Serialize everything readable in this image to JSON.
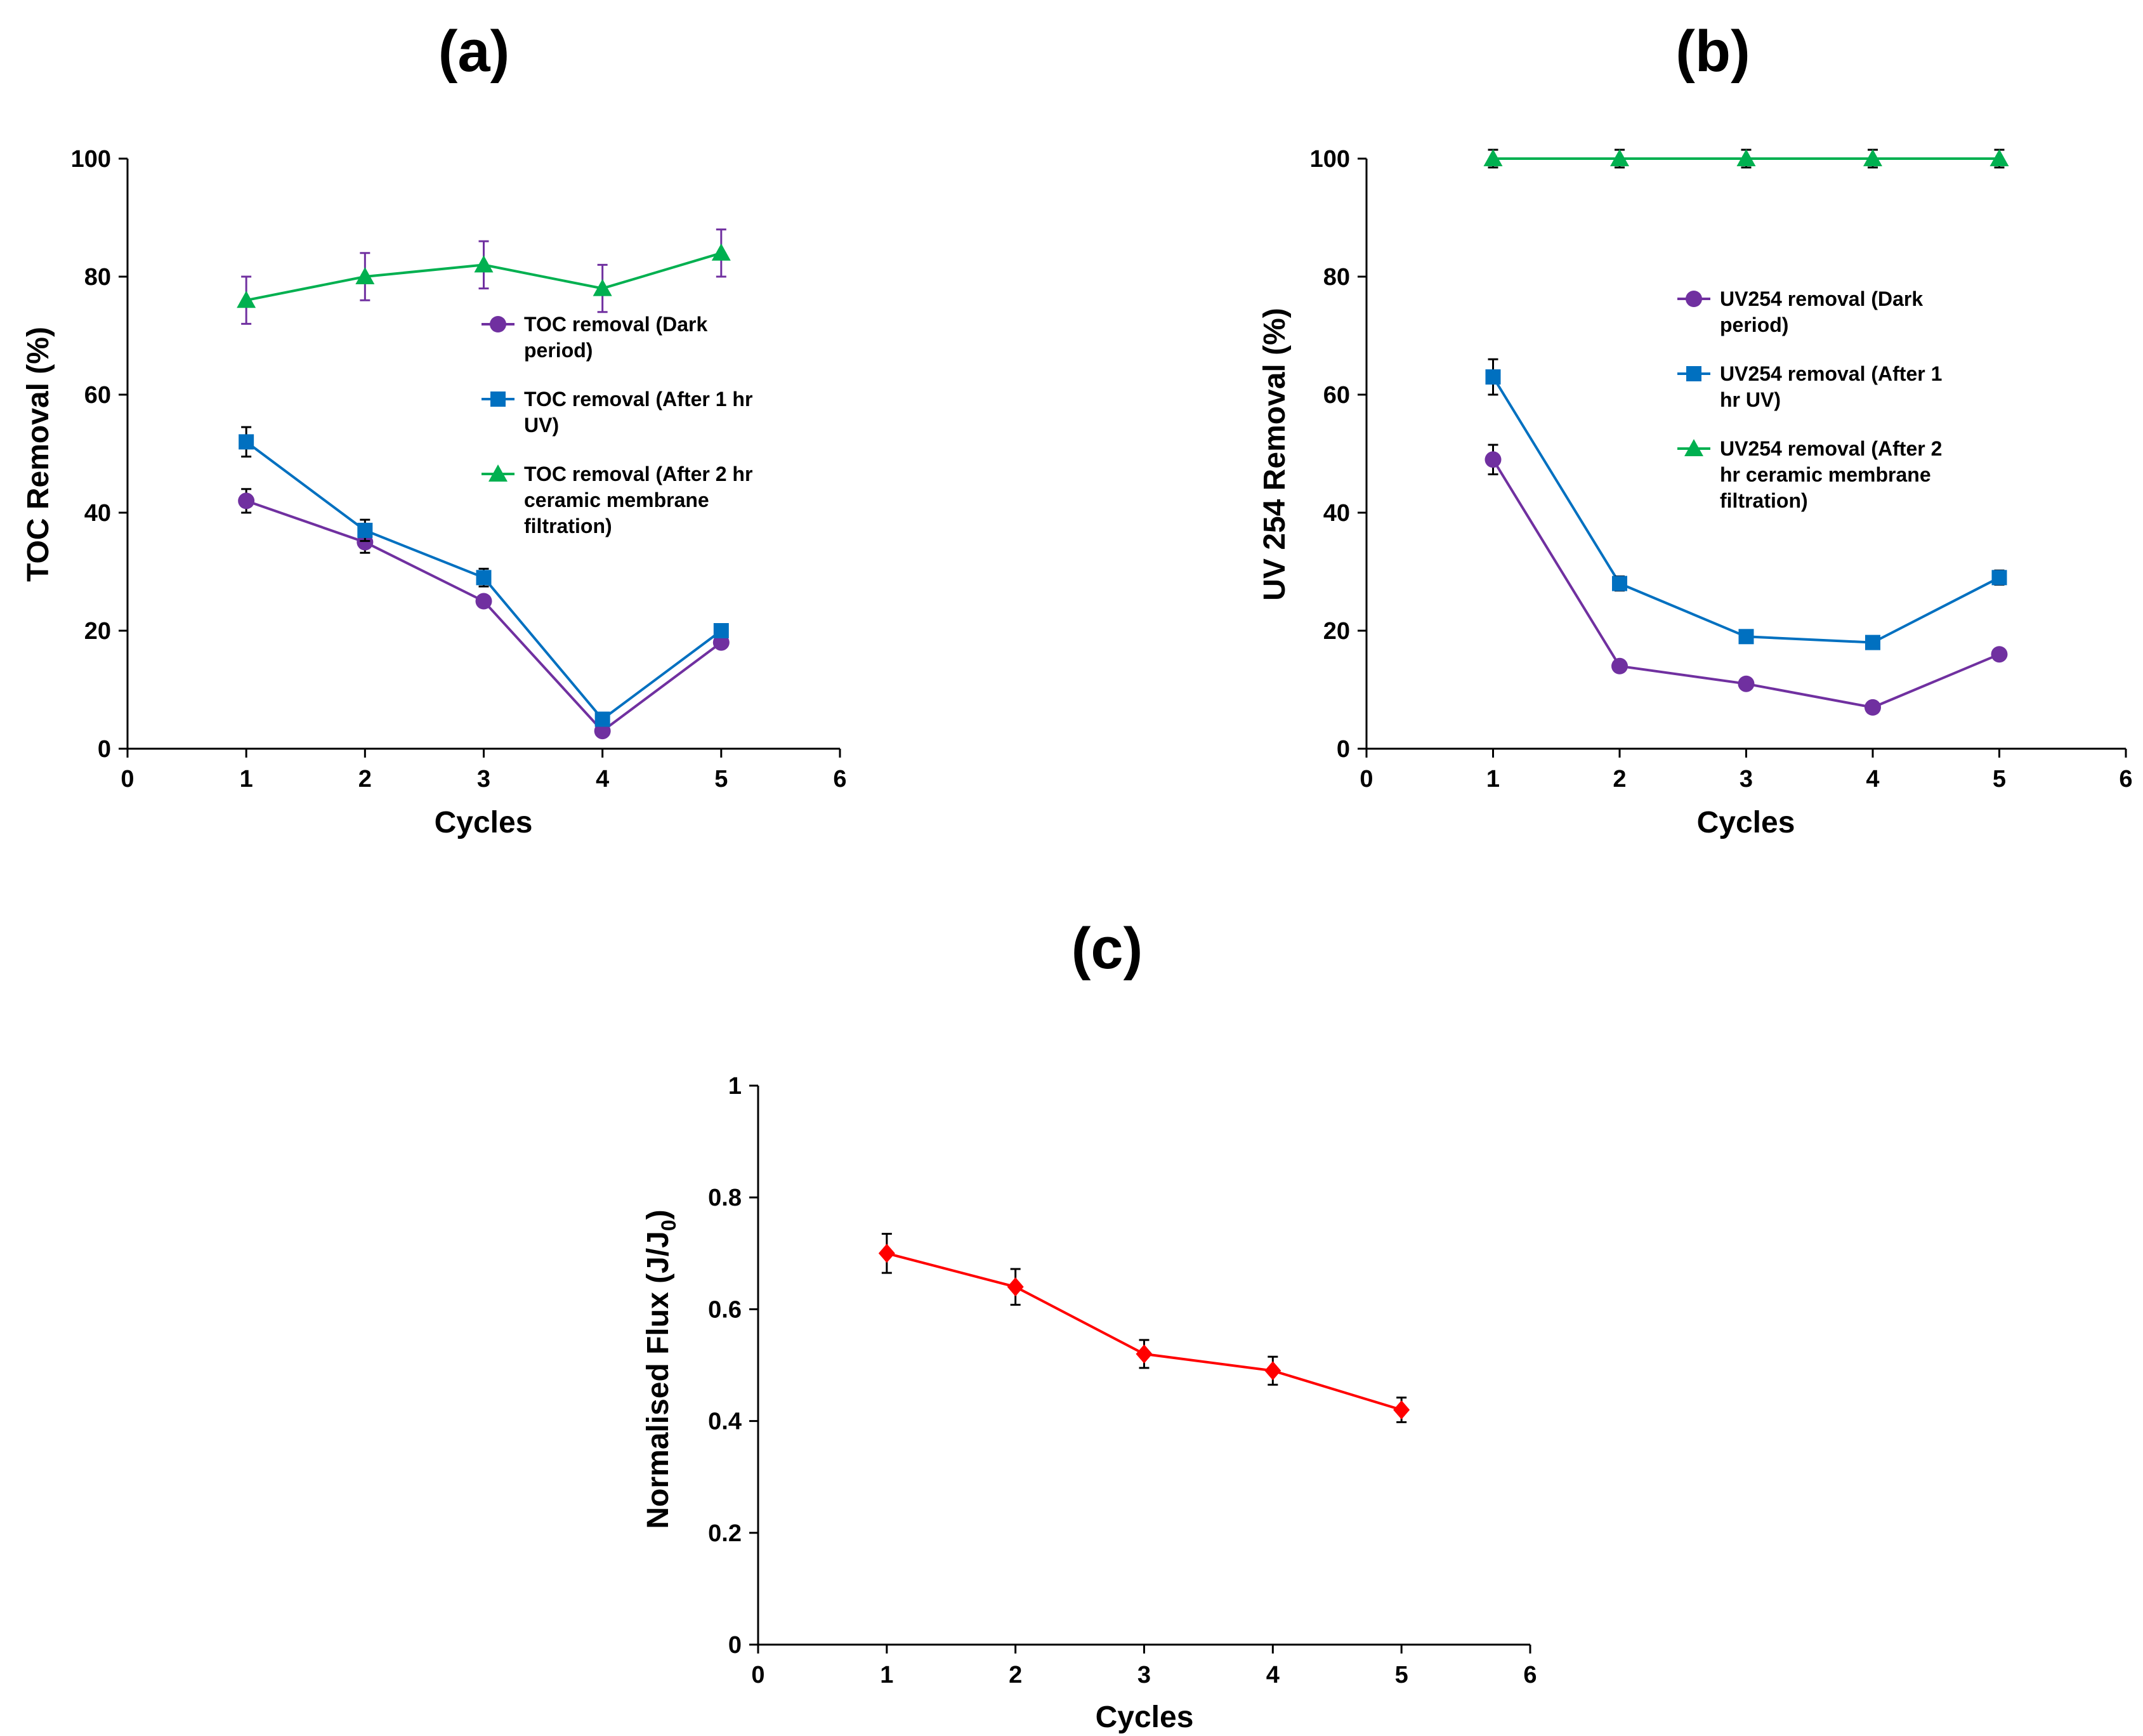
{
  "chart_data": [
    {
      "id": "a",
      "panel_label": "(a)",
      "type": "line",
      "xlabel": "Cycles",
      "ylabel": "TOC Removal (%)",
      "xlim": [
        0,
        6
      ],
      "ylim": [
        0,
        100
      ],
      "xticks": [
        "0",
        "1",
        "2",
        "3",
        "4",
        "5",
        "6"
      ],
      "yticks": [
        "0",
        "20",
        "40",
        "60",
        "80",
        "100"
      ],
      "x": [
        1,
        2,
        3,
        4,
        5
      ],
      "legend_position": "right-center",
      "series": [
        {
          "name": "TOC removal (Dark period)",
          "legend_lines": [
            "TOC removal (Dark",
            "period)"
          ],
          "marker": "circle",
          "color": "#7030A0",
          "values": [
            42,
            35,
            25,
            3,
            18
          ],
          "errors": [
            2,
            1.8,
            0,
            0,
            0
          ]
        },
        {
          "name": "TOC removal (After 1 hr UV)",
          "legend_lines": [
            "TOC removal (After 1 hr",
            "UV)"
          ],
          "marker": "square",
          "color": "#0070C0",
          "values": [
            52,
            37,
            29,
            5,
            20
          ],
          "errors": [
            2.5,
            1.8,
            1.5,
            0,
            0
          ]
        },
        {
          "name": "TOC removal (After 2 hr ceramic membrane filtration)",
          "legend_lines": [
            "TOC removal (After 2 hr",
            "ceramic membrane",
            "filtration)"
          ],
          "marker": "triangle",
          "color": "#00B050",
          "error_color": "#7030A0",
          "values": [
            76,
            80,
            82,
            78,
            84
          ],
          "errors": [
            4,
            4,
            4,
            4,
            4
          ]
        }
      ]
    },
    {
      "id": "b",
      "panel_label": "(b)",
      "type": "line",
      "xlabel": "Cycles",
      "ylabel": "UV 254 Removal (%)",
      "xlim": [
        0,
        6
      ],
      "ylim": [
        0,
        100
      ],
      "xticks": [
        "0",
        "1",
        "2",
        "3",
        "4",
        "5",
        "6"
      ],
      "yticks": [
        "0",
        "20",
        "40",
        "60",
        "80",
        "100"
      ],
      "x": [
        1,
        2,
        3,
        4,
        5
      ],
      "legend_position": "right-center",
      "series": [
        {
          "name": "UV254 removal (Dark period)",
          "legend_lines": [
            "UV254 removal (Dark",
            "period)"
          ],
          "marker": "circle",
          "color": "#7030A0",
          "values": [
            49,
            14,
            11,
            7,
            16
          ],
          "errors": [
            2.5,
            0,
            0,
            0,
            0
          ]
        },
        {
          "name": "UV254 removal (After 1 hr UV)",
          "legend_lines": [
            "UV254 removal (After 1",
            "hr UV)"
          ],
          "marker": "square",
          "color": "#0070C0",
          "values": [
            63,
            28,
            19,
            18,
            29
          ],
          "errors": [
            3,
            1.2,
            0,
            0,
            1.2
          ]
        },
        {
          "name": "UV254 removal (After 2 hr ceramic membrane filtration)",
          "legend_lines": [
            "UV254 removal (After 2",
            "hr ceramic membrane",
            "filtration)"
          ],
          "marker": "triangle",
          "color": "#00B050",
          "values": [
            100,
            100,
            100,
            100,
            100
          ],
          "errors": [
            1.5,
            1.5,
            1.5,
            1.5,
            1.5
          ]
        }
      ]
    },
    {
      "id": "c",
      "panel_label": "(c)",
      "type": "line",
      "xlabel": "Cycles",
      "ylabel": "Normalised   Flux (J/J",
      "ylabel_subscript": "0",
      "ylabel_suffix": ")",
      "xlim": [
        0,
        6
      ],
      "ylim": [
        0,
        1
      ],
      "xticks": [
        "0",
        "1",
        "2",
        "3",
        "4",
        "5",
        "6"
      ],
      "yticks": [
        "0",
        "0.2",
        "0.4",
        "0.6",
        "0.8",
        "1"
      ],
      "x": [
        1,
        2,
        3,
        4,
        5
      ],
      "series": [
        {
          "name": "Normalised Flux",
          "marker": "diamond",
          "color": "#FF0000",
          "values": [
            0.7,
            0.64,
            0.52,
            0.49,
            0.42
          ],
          "errors": [
            0.035,
            0.032,
            0.025,
            0.025,
            0.022
          ]
        }
      ]
    }
  ]
}
